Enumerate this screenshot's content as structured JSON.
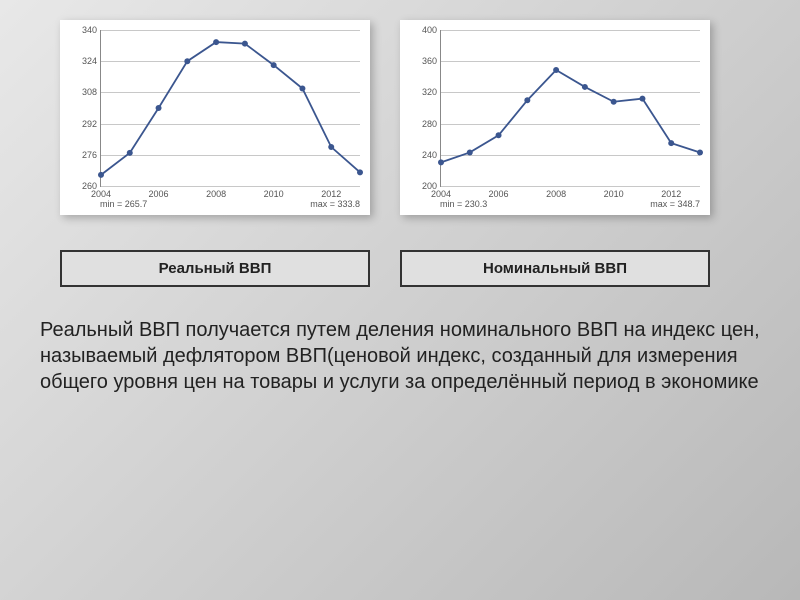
{
  "chart_left": {
    "type": "line",
    "x": [
      2004,
      2005,
      2006,
      2007,
      2008,
      2009,
      2010,
      2011,
      2012,
      2013
    ],
    "y": [
      265.7,
      277,
      300,
      324,
      333.8,
      333,
      322,
      310,
      280,
      267
    ],
    "x_ticks": [
      2004,
      2006,
      2008,
      2010,
      2012
    ],
    "y_ticks": [
      260,
      276,
      292,
      308,
      324,
      340
    ],
    "ylim": [
      260,
      340
    ],
    "xlim": [
      2004,
      2013
    ],
    "line_color": "#3b568f",
    "marker_color": "#3b568f",
    "grid_color": "#c8c8c8",
    "axis_color": "#888888",
    "background_color": "#ffffff",
    "tick_fontsize": 9,
    "min_label": "min = 265.7",
    "max_label": "max = 333.8",
    "line_width": 1.8,
    "marker_size": 3
  },
  "chart_right": {
    "type": "line",
    "x": [
      2004,
      2005,
      2006,
      2007,
      2008,
      2009,
      2010,
      2011,
      2012,
      2013
    ],
    "y": [
      230.3,
      243,
      265,
      310,
      348.7,
      327,
      308,
      312,
      255,
      243
    ],
    "x_ticks": [
      2004,
      2006,
      2008,
      2010,
      2012
    ],
    "y_ticks": [
      200,
      240,
      280,
      320,
      360,
      400
    ],
    "ylim": [
      200,
      400
    ],
    "xlim": [
      2004,
      2013
    ],
    "line_color": "#3b568f",
    "marker_color": "#3b568f",
    "grid_color": "#c8c8c8",
    "axis_color": "#888888",
    "background_color": "#ffffff",
    "tick_fontsize": 9,
    "min_label": "min = 230.3",
    "max_label": "max = 348.7",
    "line_width": 1.8,
    "marker_size": 3
  },
  "labels": {
    "left": "Реальный ВВП",
    "right": "Номинальный ВВП"
  },
  "body_text": "Реальный ВВП получается путем деления номинального ВВП на индекс цен, называемый дефлятором ВВП(ценовой индекс, созданный для измерения общего уровня цен на товары и услуги за определённый период в экономике",
  "colors": {
    "page_bg_start": "#e8e8e8",
    "page_bg_end": "#b8b8b8",
    "label_border": "#333333",
    "label_bg": "#e0e0e0",
    "text_color": "#222222"
  }
}
